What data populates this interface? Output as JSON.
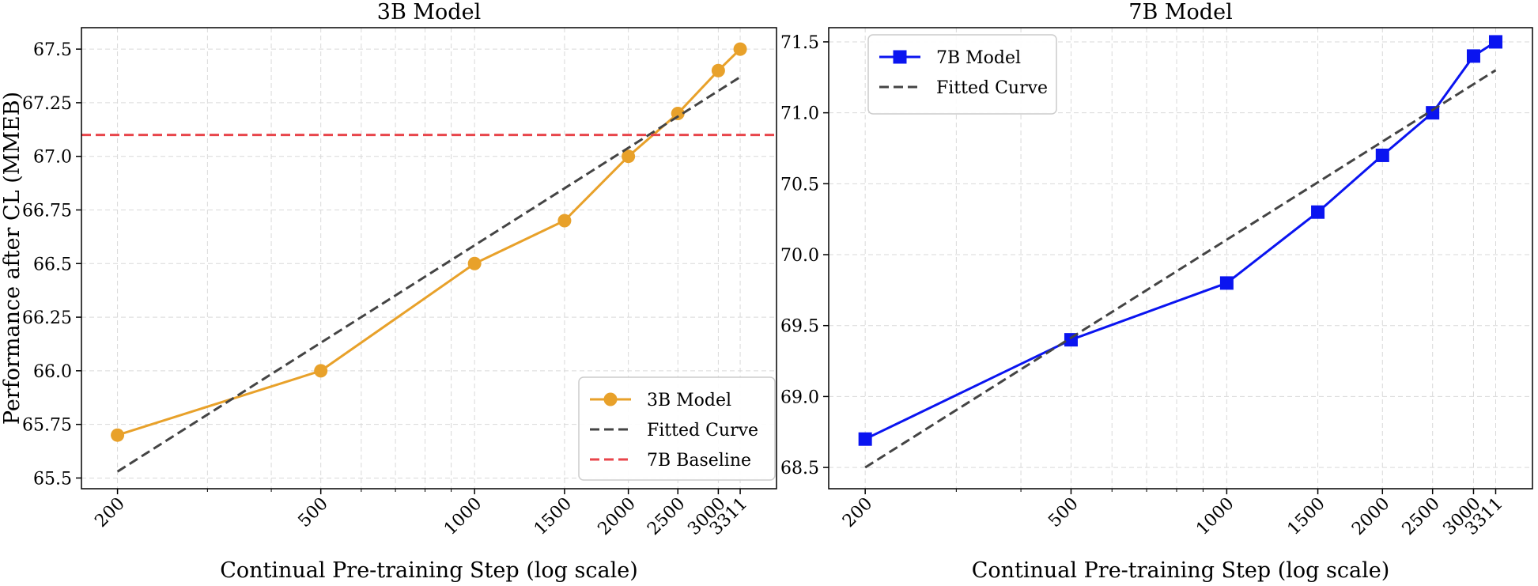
{
  "chart_data": [
    {
      "type": "line",
      "title": "3B Model",
      "xlabel": "Continual Pre-training Step (log scale)",
      "ylabel": "Performance after CL (MMEB)",
      "xscale": "log",
      "xlim": [
        170,
        3900
      ],
      "ylim": [
        65.45,
        67.6
      ],
      "x_ticks": [
        200,
        500,
        1000,
        1500,
        2000,
        2500,
        3000,
        3311
      ],
      "x_tick_labels": [
        "200",
        "500",
        "1000",
        "1500",
        "2000",
        "2500",
        "3000",
        "3311"
      ],
      "y_ticks": [
        65.5,
        65.75,
        66.0,
        66.25,
        66.5,
        66.75,
        67.0,
        67.25,
        67.5
      ],
      "y_tick_labels": [
        "65.5",
        "65.75",
        "66.0",
        "66.25",
        "66.5",
        "66.75",
        "67.0",
        "67.25",
        "67.5"
      ],
      "grid": true,
      "legend_position": "lower-right",
      "series": [
        {
          "name": "3B Model",
          "kind": "data",
          "marker": "circle",
          "color": "#E8A12A",
          "x": [
            200,
            500,
            1000,
            1500,
            2000,
            2500,
            3000,
            3311
          ],
          "y": [
            65.7,
            66.0,
            66.5,
            66.7,
            67.0,
            67.2,
            67.4,
            67.5
          ]
        },
        {
          "name": "Fitted Curve",
          "kind": "fit",
          "color": "#444444",
          "x": [
            200,
            3311
          ],
          "y": [
            65.53,
            67.37
          ]
        },
        {
          "name": "7B Baseline",
          "kind": "hline",
          "color": "#E8454B",
          "y": 67.1
        }
      ]
    },
    {
      "type": "line",
      "title": "7B Model",
      "xlabel": "Continual Pre-training Step (log scale)",
      "ylabel": "",
      "xscale": "log",
      "xlim": [
        170,
        3900
      ],
      "ylim": [
        68.35,
        71.6
      ],
      "x_ticks": [
        200,
        500,
        1000,
        1500,
        2000,
        2500,
        3000,
        3311
      ],
      "x_tick_labels": [
        "200",
        "500",
        "1000",
        "1500",
        "2000",
        "2500",
        "3000",
        "3311"
      ],
      "y_ticks": [
        68.5,
        69.0,
        69.5,
        70.0,
        70.5,
        71.0,
        71.5
      ],
      "y_tick_labels": [
        "68.5",
        "69.0",
        "69.5",
        "70.0",
        "70.5",
        "71.0",
        "71.5"
      ],
      "grid": true,
      "legend_position": "upper-left",
      "series": [
        {
          "name": "7B Model",
          "kind": "data",
          "marker": "square",
          "color": "#0A14F0",
          "x": [
            200,
            500,
            1000,
            1500,
            2000,
            2500,
            3000,
            3311
          ],
          "y": [
            68.7,
            69.4,
            69.8,
            70.3,
            70.7,
            71.0,
            71.4,
            71.5
          ]
        },
        {
          "name": "Fitted Curve",
          "kind": "fit",
          "color": "#444444",
          "x": [
            200,
            3311
          ],
          "y": [
            68.5,
            71.3
          ]
        }
      ]
    }
  ]
}
